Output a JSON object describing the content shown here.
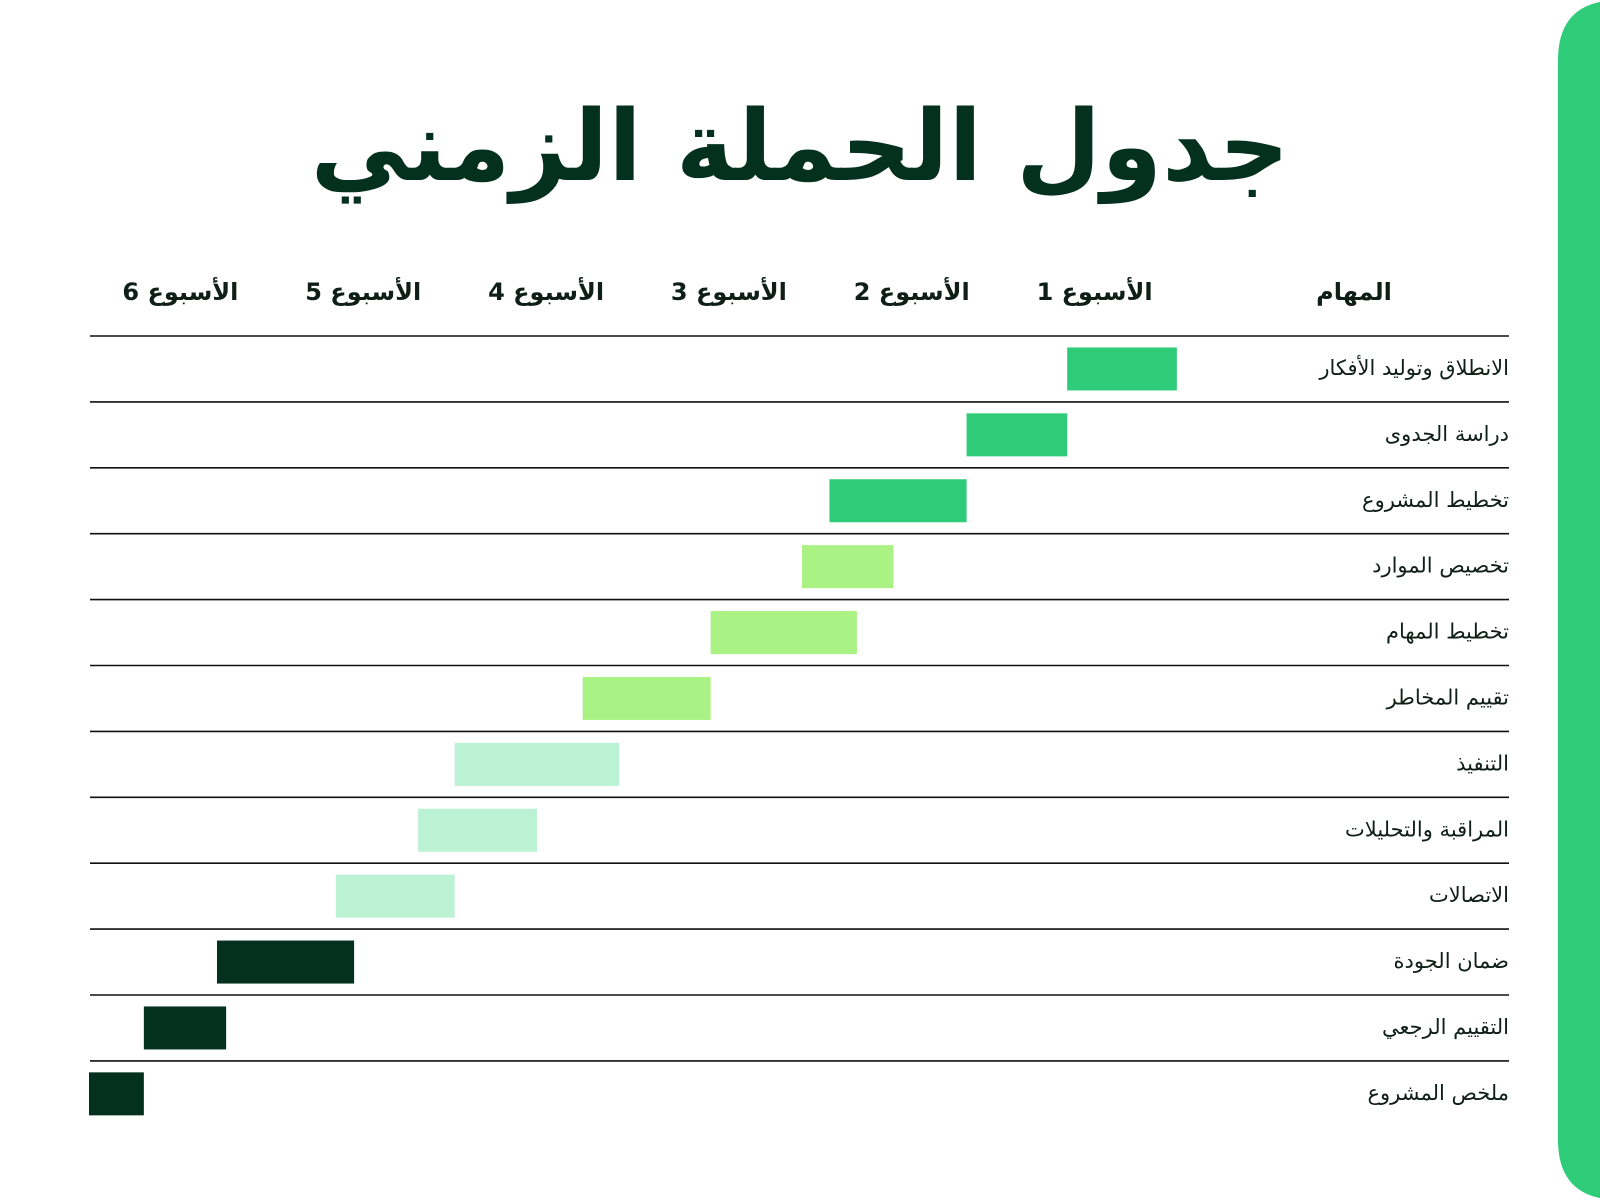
{
  "chart_data": {
    "type": "gantt",
    "title": "جدول الحملة الزمني",
    "task_header": "المهام",
    "xlim": [
      0,
      6
    ],
    "xticks": [
      {
        "value": 0.5,
        "label": "الأسبوع 1"
      },
      {
        "value": 1.5,
        "label": "الأسبوع 2"
      },
      {
        "value": 2.5,
        "label": "الأسبوع 3"
      },
      {
        "value": 3.5,
        "label": "الأسبوع 4"
      },
      {
        "value": 4.5,
        "label": "الأسبوع 5"
      },
      {
        "value": 5.5,
        "label": "الأسبوع 6"
      }
    ],
    "direction": "rtl",
    "tasks": [
      {
        "name": "الانطلاق وتوليد الأفكار",
        "start": 0.05,
        "end": 0.65,
        "color": "#2ecc78"
      },
      {
        "name": "دراسة الجدوى",
        "start": 0.65,
        "end": 1.2,
        "color": "#2ecc78"
      },
      {
        "name": "تخطيط المشروع",
        "start": 1.2,
        "end": 1.95,
        "color": "#2ecc78"
      },
      {
        "name": "تخصيص الموارد",
        "start": 1.6,
        "end": 2.1,
        "color": "#aaf283"
      },
      {
        "name": "تخطيط المهام",
        "start": 1.8,
        "end": 2.6,
        "color": "#aaf283"
      },
      {
        "name": "تقييم المخاطر",
        "start": 2.6,
        "end": 3.3,
        "color": "#aaf283"
      },
      {
        "name": "التنفيذ",
        "start": 3.1,
        "end": 4.0,
        "color": "#bbf2d4"
      },
      {
        "name": "المراقبة والتحليلات",
        "start": 3.55,
        "end": 4.2,
        "color": "#bbf2d4"
      },
      {
        "name": "الاتصالات",
        "start": 4.0,
        "end": 4.65,
        "color": "#bbf2d4"
      },
      {
        "name": "ضمان الجودة",
        "start": 4.55,
        "end": 5.3,
        "color": "#03301f"
      },
      {
        "name": "التقييم الرجعي",
        "start": 5.25,
        "end": 5.7,
        "color": "#03301f"
      },
      {
        "name": "ملخص المشروع",
        "start": 5.7,
        "end": 6.0,
        "color": "#03301f"
      }
    ]
  }
}
